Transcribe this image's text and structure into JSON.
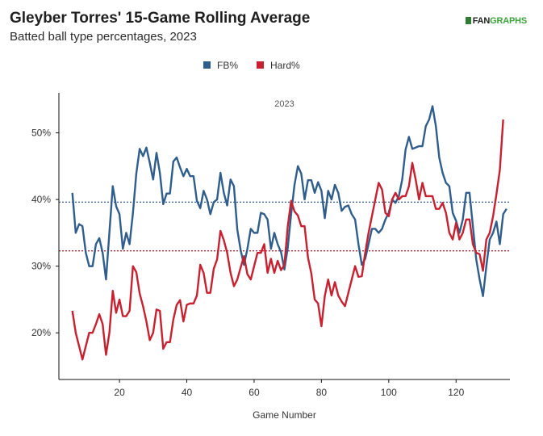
{
  "header": {
    "title": "Gleyber Torres' 15-Game Rolling Average",
    "subtitle": "Batted ball type percentages, 2023",
    "logo_fan": "FAN",
    "logo_graphs": "GRAPHS"
  },
  "chart_data": {
    "type": "line",
    "facet_label": "2023",
    "xlabel": "Game Number",
    "ylabel": "",
    "xlim": [
      2,
      136
    ],
    "ylim": [
      13,
      56
    ],
    "x_ticks": [
      20,
      40,
      60,
      80,
      100,
      120
    ],
    "y_ticks": [
      {
        "value": 20,
        "label": "20%"
      },
      {
        "value": 30,
        "label": "30%"
      },
      {
        "value": 40,
        "label": "40%"
      },
      {
        "value": 50,
        "label": "50%"
      }
    ],
    "legend_position": "top-center",
    "series": [
      {
        "name": "FB%",
        "color": "#2f5d8c",
        "average": 39.6,
        "x_start": 6,
        "values": [
          41,
          35,
          36.3,
          36,
          32,
          30,
          30,
          33.3,
          34.2,
          32,
          28,
          35,
          42,
          39,
          37.8,
          32.6,
          35,
          33.3,
          38,
          43.9,
          47.6,
          46.5,
          47.8,
          45.5,
          43,
          47,
          44,
          39.3,
          40.9,
          40.9,
          45.7,
          46.3,
          44.8,
          43.5,
          44.6,
          43.5,
          43.5,
          39.8,
          38.7,
          41.3,
          40,
          37.8,
          39.6,
          40,
          44,
          41,
          39.1,
          43,
          42,
          35.5,
          32.4,
          30.2,
          32.6,
          35.6,
          35,
          35,
          38,
          37.8,
          37,
          32.6,
          35,
          33.3,
          32.1,
          29.5,
          32.8,
          37.8,
          42.2,
          45,
          43.9,
          40,
          42.9,
          42.9,
          41,
          42.6,
          41.3,
          37.2,
          41.3,
          40,
          42.2,
          41,
          38.3,
          38.9,
          39.1,
          37.8,
          37,
          33.3,
          30.2,
          31.1,
          33.3,
          35.6,
          35.6,
          35,
          35.6,
          37,
          38,
          40,
          39.5,
          40.5,
          43,
          47.5,
          49.4,
          47.6,
          47.8,
          48,
          48,
          51,
          52,
          54,
          51,
          46.3,
          44,
          42.5,
          42,
          38,
          36.8,
          35,
          37,
          41,
          41,
          36,
          31,
          28,
          25.5,
          30,
          34,
          35,
          36.7,
          33.3,
          37.8,
          38.6
        ]
      },
      {
        "name": "Hard%",
        "color": "#c8202f",
        "average": 32.3,
        "x_start": 6,
        "values": [
          23.3,
          20,
          18,
          16,
          18,
          20,
          20,
          21.3,
          22.8,
          21.3,
          16.7,
          20,
          26.3,
          23,
          25,
          22.5,
          22.5,
          23.3,
          30,
          29.1,
          25.9,
          24,
          21.7,
          18.9,
          20,
          23.5,
          23.3,
          17.6,
          18.6,
          18.6,
          22,
          24.2,
          24.9,
          21.7,
          24.2,
          24.4,
          24.4,
          25.6,
          30.2,
          29,
          26,
          26,
          29.6,
          31,
          35.3,
          33.9,
          32,
          29,
          27,
          28,
          29.8,
          31.5,
          28.8,
          28,
          30,
          32,
          32,
          33.3,
          29,
          31.1,
          29,
          30.8,
          29.4,
          30.2,
          36,
          39.8,
          38.2,
          37.6,
          36,
          36,
          31.3,
          28.9,
          25,
          24.4,
          21,
          25.5,
          28,
          25.6,
          27.6,
          25.6,
          24.7,
          24,
          26,
          28,
          30,
          28.4,
          28.5,
          32,
          35,
          37.5,
          40,
          42.5,
          41.5,
          38,
          37.5,
          40,
          41,
          40,
          40.5,
          40.5,
          42,
          45.5,
          43,
          40,
          42.5,
          40.5,
          40.5,
          40.5,
          38.6,
          38.6,
          39.5,
          38,
          35,
          34,
          36.5,
          34,
          35,
          37,
          37,
          33.3,
          32,
          31.8,
          29.3,
          34,
          35,
          37.5,
          40.8,
          44.4,
          52
        ]
      }
    ]
  }
}
